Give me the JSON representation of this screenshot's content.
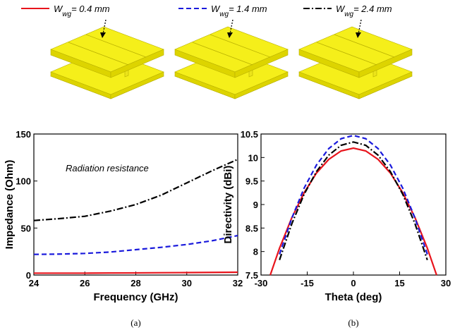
{
  "legend": [
    {
      "symbol": "W",
      "subscript": "wg",
      "label": "= 0.4 mm",
      "color": "#e8141c",
      "dash": "solid"
    },
    {
      "symbol": "W",
      "subscript": "wg",
      "label": "= 1.4 mm",
      "color": "#1a1adc",
      "dash": "dash"
    },
    {
      "symbol": "W",
      "subscript": "wg",
      "label": "= 2.4 mm",
      "color": "#000000",
      "dash": "dashdot"
    }
  ],
  "chart_data": [
    {
      "type": "line",
      "caption": "(a)",
      "xlabel": "Frequency (GHz)",
      "ylabel": "Impedance (Ohm)",
      "annotation": "Radiation resistance",
      "x": [
        24,
        25,
        26,
        27,
        28,
        29,
        30,
        31,
        32
      ],
      "xlim": [
        24,
        32
      ],
      "xticks": [
        24,
        26,
        28,
        30,
        32
      ],
      "ylim": [
        0,
        150
      ],
      "yticks": [
        0,
        50,
        100,
        150
      ],
      "series": [
        {
          "color": "#e8141c",
          "dash": "solid",
          "values": [
            2,
            2,
            2,
            2.2,
            2.3,
            2.5,
            2.6,
            2.8,
            3
          ]
        },
        {
          "color": "#1a1adc",
          "dash": "dash",
          "values": [
            22,
            22.3,
            23,
            24.5,
            27,
            29.5,
            32.5,
            36.5,
            42
          ]
        },
        {
          "color": "#000000",
          "dash": "dashdot",
          "values": [
            58,
            60,
            62.5,
            68,
            75,
            85,
            98,
            111,
            123
          ]
        }
      ]
    },
    {
      "type": "line",
      "caption": "(b)",
      "xlabel": "Theta (deg)",
      "ylabel": "Directivity (dBi)",
      "x": [
        -27,
        -24,
        -20,
        -16,
        -12,
        -8,
        -4,
        0,
        4,
        8,
        12,
        16,
        20,
        24,
        27
      ],
      "xlim": [
        -30,
        30
      ],
      "xticks": [
        -30,
        -15,
        0,
        15,
        30
      ],
      "ylim": [
        7.5,
        10.5
      ],
      "yticks": [
        7.5,
        8,
        8.5,
        9,
        9.5,
        10,
        10.5
      ],
      "series": [
        {
          "color": "#e8141c",
          "dash": "solid",
          "values": [
            7.5,
            8.07,
            8.72,
            9.25,
            9.67,
            9.96,
            10.14,
            10.2,
            10.14,
            9.96,
            9.67,
            9.25,
            8.72,
            8.07,
            7.5
          ]
        },
        {
          "color": "#1a1adc",
          "dash": "dash",
          "values": [
            null,
            7.94,
            8.71,
            9.35,
            9.84,
            10.19,
            10.4,
            10.47,
            10.4,
            10.19,
            9.84,
            9.35,
            8.71,
            7.94,
            null
          ]
        },
        {
          "color": "#000000",
          "dash": "dashdot",
          "values": [
            null,
            7.82,
            8.59,
            9.22,
            9.7,
            10.05,
            10.26,
            10.33,
            10.26,
            10.05,
            9.7,
            9.22,
            8.59,
            7.82,
            null
          ]
        }
      ]
    }
  ]
}
